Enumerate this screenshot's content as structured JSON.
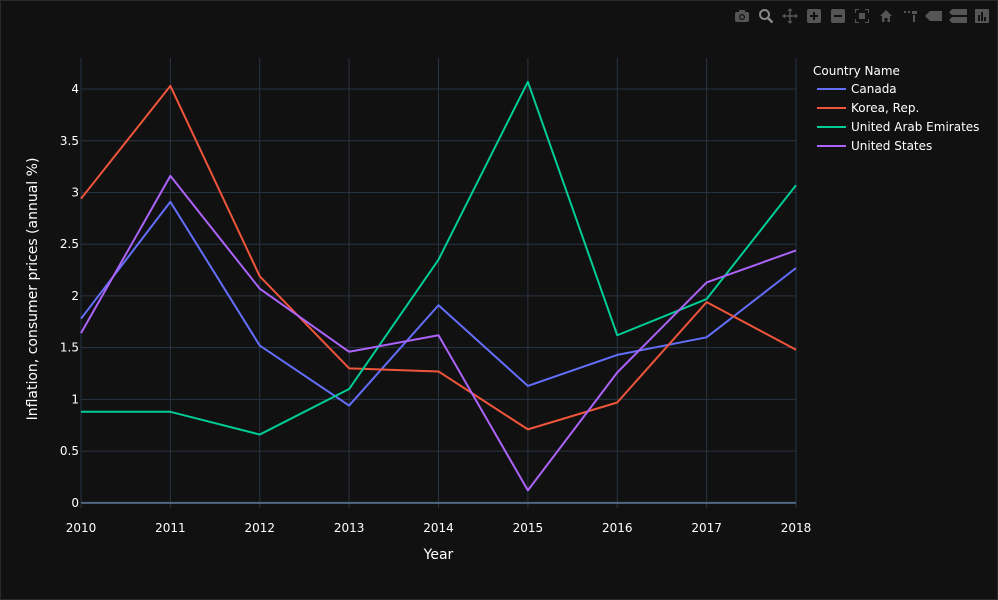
{
  "modebar": {
    "icons": [
      "camera-icon",
      "zoom-icon",
      "pan-icon",
      "zoom-in-icon",
      "zoom-out-icon",
      "autoscale-icon",
      "home-icon",
      "spike-lines-icon",
      "hover-closest-icon",
      "hover-compare-icon",
      "plotly-logo-icon"
    ]
  },
  "chart_data": {
    "type": "line",
    "x": [
      2010,
      2011,
      2012,
      2013,
      2014,
      2015,
      2016,
      2017,
      2018
    ],
    "xlabel": "Year",
    "ylabel": "Inflation, consumer prices (annual %)",
    "xlim": [
      2010,
      2018
    ],
    "ylim": [
      -0.05,
      4.3
    ],
    "yticks": [
      0,
      0.5,
      1,
      1.5,
      2,
      2.5,
      3,
      3.5,
      4
    ],
    "ytick_labels": [
      "0",
      "0.5",
      "1",
      "1.5",
      "2",
      "2.5",
      "3",
      "3.5",
      "4"
    ],
    "xtick_labels": [
      "2010",
      "2011",
      "2012",
      "2013",
      "2014",
      "2015",
      "2016",
      "2017",
      "2018"
    ],
    "grid": true,
    "legend": {
      "title": "Country Name",
      "placement": "right"
    },
    "series": [
      {
        "name": "Canada",
        "color": "#636efa",
        "values": [
          1.78,
          2.91,
          1.52,
          0.94,
          1.91,
          1.13,
          1.43,
          1.6,
          2.27
        ]
      },
      {
        "name": "Korea, Rep.",
        "color": "#ef553b",
        "values": [
          2.94,
          4.03,
          2.19,
          1.3,
          1.27,
          0.71,
          0.97,
          1.94,
          1.48
        ]
      },
      {
        "name": "United Arab Emirates",
        "color": "#00cc96",
        "values": [
          0.88,
          0.88,
          0.66,
          1.1,
          2.35,
          4.07,
          1.62,
          1.97,
          3.07
        ]
      },
      {
        "name": "United States",
        "color": "#ab63fa",
        "values": [
          1.64,
          3.16,
          2.07,
          1.46,
          1.62,
          0.12,
          1.26,
          2.13,
          2.44
        ]
      }
    ]
  }
}
